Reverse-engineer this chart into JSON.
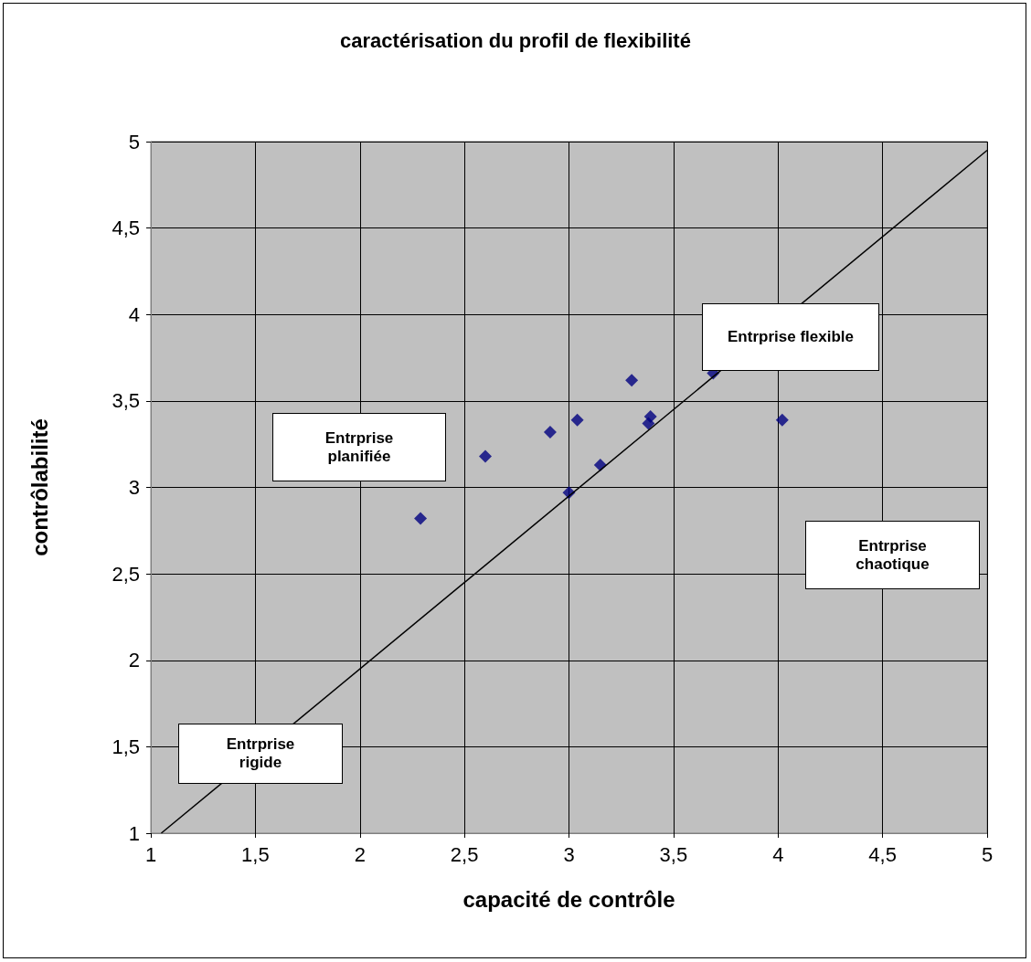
{
  "chart_data": {
    "type": "scatter",
    "title": "caractérisation du profil de flexibilité",
    "xlabel": "capacité de contrôle",
    "ylabel": "contrôlabilité",
    "series": [
      {
        "color": "#000080",
        "marker": "diamond",
        "x": [
          2.29,
          2.6,
          2.91,
          3.04,
          3.0,
          3.15,
          3.3,
          3.39,
          3.38,
          3.69,
          4.02
        ],
        "values": [
          2.82,
          3.18,
          3.32,
          3.39,
          2.97,
          3.13,
          3.62,
          3.41,
          3.37,
          3.66,
          3.39
        ]
      },
      {
        "type": "line",
        "color": "#000000",
        "marker": "none",
        "line_style": "solid",
        "x": [
          1.05,
          5
        ],
        "values": [
          1,
          4.95
        ]
      }
    ],
    "xlim": [
      1,
      5
    ],
    "ylim": [
      1,
      5
    ],
    "xticks": [
      1,
      {
        "value": 1.5,
        "label": "1,5"
      },
      2,
      {
        "value": 2.5,
        "label": "2,5"
      },
      3,
      {
        "value": 3.5,
        "label": "3,5"
      },
      4,
      {
        "value": 4.5,
        "label": "4,5"
      },
      5
    ],
    "yticks": [
      1,
      {
        "value": 1.5,
        "label": "1,5"
      },
      2,
      {
        "value": 2.5,
        "label": "2,5"
      },
      3,
      {
        "value": 3.5,
        "label": "3,5"
      },
      4,
      {
        "value": 4.5,
        "label": "4,5"
      },
      5
    ],
    "grid": true,
    "annotations": [
      "Entrprise planifiée",
      "Entrprise flexible",
      "Entrprise chaotique",
      "Entrprise rigide"
    ]
  }
}
